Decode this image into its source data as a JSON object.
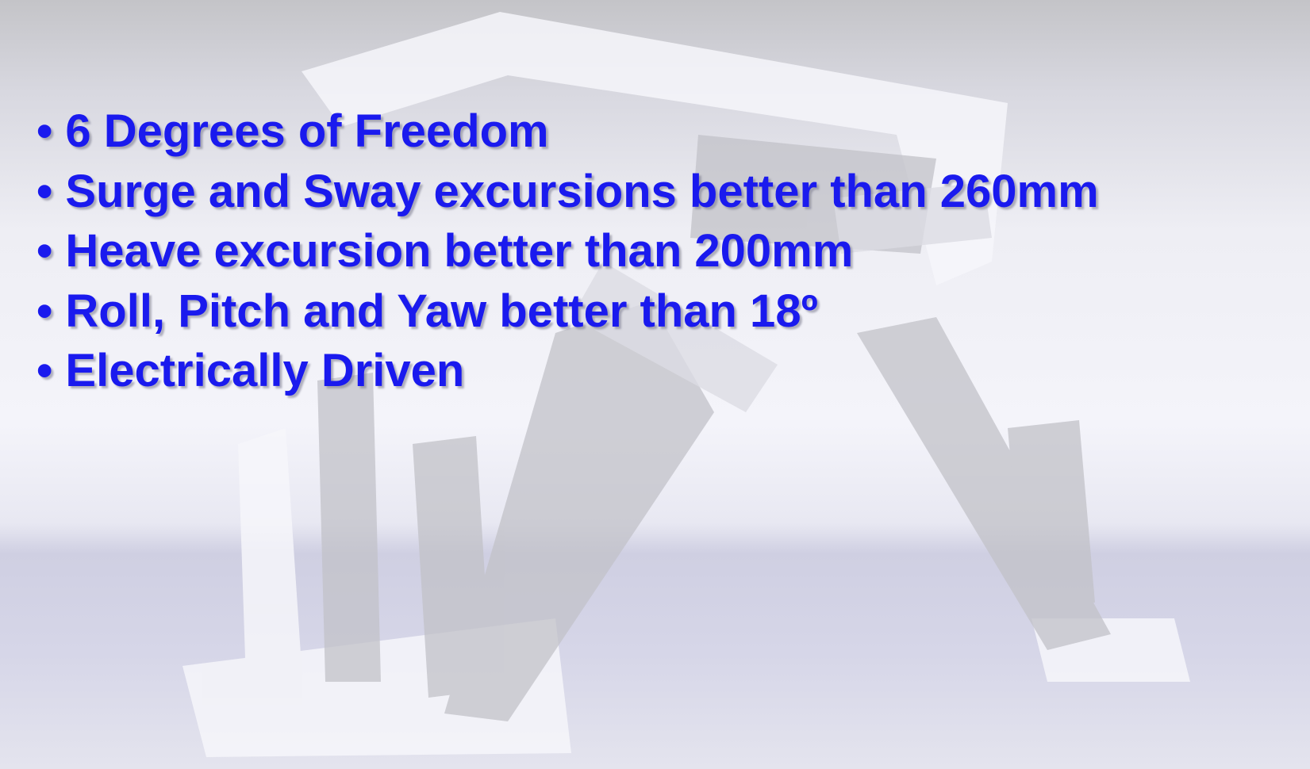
{
  "slide": {
    "bullets": [
      "• 6 Degrees of Freedom",
      "• Surge and Sway excursions better than 260mm",
      "• Heave excursion better than 200mm",
      "• Roll, Pitch and Yaw better than 18º",
      "• Electrically Driven"
    ]
  }
}
